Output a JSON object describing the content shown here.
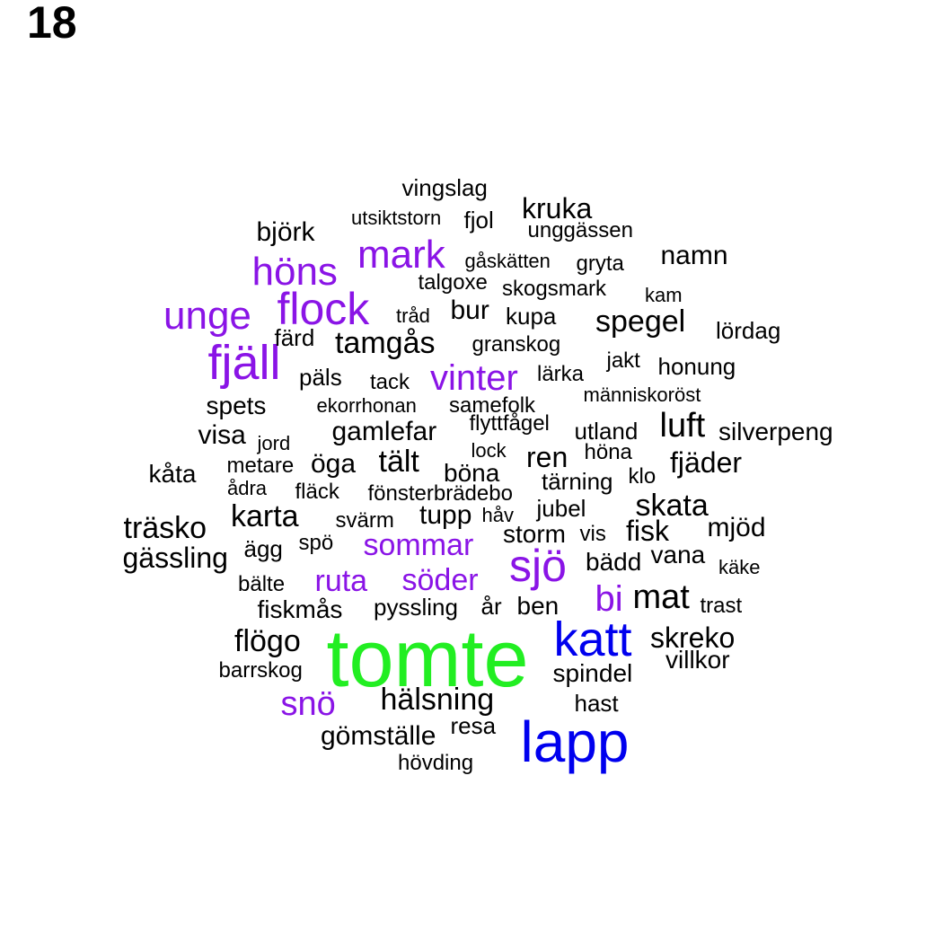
{
  "panel_label": "18",
  "colors": {
    "green": "#22ee22",
    "blue": "#0000ee",
    "purple": "#8a14e6",
    "black": "#000000"
  },
  "words": [
    {
      "text": "tomte",
      "color": "green"
    },
    {
      "text": "lapp",
      "color": "blue"
    },
    {
      "text": "katt",
      "color": "blue"
    },
    {
      "text": "sjö",
      "color": "purple"
    },
    {
      "text": "fjäll",
      "color": "purple"
    },
    {
      "text": "flock",
      "color": "purple"
    },
    {
      "text": "unge",
      "color": "purple"
    },
    {
      "text": "höns",
      "color": "purple"
    },
    {
      "text": "mark",
      "color": "purple"
    },
    {
      "text": "vinter",
      "color": "purple"
    },
    {
      "text": "sommar",
      "color": "purple"
    },
    {
      "text": "söder",
      "color": "purple"
    },
    {
      "text": "ruta",
      "color": "purple"
    },
    {
      "text": "bi",
      "color": "purple"
    },
    {
      "text": "snö",
      "color": "purple"
    },
    {
      "text": "vingslag",
      "color": "black"
    },
    {
      "text": "kruka",
      "color": "black"
    },
    {
      "text": "utsiktstorn",
      "color": "black"
    },
    {
      "text": "fjol",
      "color": "black"
    },
    {
      "text": "unggässen",
      "color": "black"
    },
    {
      "text": "björk",
      "color": "black"
    },
    {
      "text": "namn",
      "color": "black"
    },
    {
      "text": "gåskätten",
      "color": "black"
    },
    {
      "text": "gryta",
      "color": "black"
    },
    {
      "text": "talgoxe",
      "color": "black"
    },
    {
      "text": "skogsmark",
      "color": "black"
    },
    {
      "text": "kam",
      "color": "black"
    },
    {
      "text": "bur",
      "color": "black"
    },
    {
      "text": "tråd",
      "color": "black"
    },
    {
      "text": "kupa",
      "color": "black"
    },
    {
      "text": "spegel",
      "color": "black"
    },
    {
      "text": "lördag",
      "color": "black"
    },
    {
      "text": "färd",
      "color": "black"
    },
    {
      "text": "tamgås",
      "color": "black"
    },
    {
      "text": "granskog",
      "color": "black"
    },
    {
      "text": "jakt",
      "color": "black"
    },
    {
      "text": "honung",
      "color": "black"
    },
    {
      "text": "päls",
      "color": "black"
    },
    {
      "text": "tack",
      "color": "black"
    },
    {
      "text": "lärka",
      "color": "black"
    },
    {
      "text": "människoröst",
      "color": "black"
    },
    {
      "text": "spets",
      "color": "black"
    },
    {
      "text": "ekorrhonan",
      "color": "black"
    },
    {
      "text": "samefolk",
      "color": "black"
    },
    {
      "text": "flyttfågel",
      "color": "black"
    },
    {
      "text": "luft",
      "color": "black"
    },
    {
      "text": "visa",
      "color": "black"
    },
    {
      "text": "jord",
      "color": "black"
    },
    {
      "text": "gamlefar",
      "color": "black"
    },
    {
      "text": "utland",
      "color": "black"
    },
    {
      "text": "silverpeng",
      "color": "black"
    },
    {
      "text": "lock",
      "color": "black"
    },
    {
      "text": "ren",
      "color": "black"
    },
    {
      "text": "höna",
      "color": "black"
    },
    {
      "text": "kåta",
      "color": "black"
    },
    {
      "text": "metare",
      "color": "black"
    },
    {
      "text": "öga",
      "color": "black"
    },
    {
      "text": "tält",
      "color": "black"
    },
    {
      "text": "böna",
      "color": "black"
    },
    {
      "text": "fjäder",
      "color": "black"
    },
    {
      "text": "ådra",
      "color": "black"
    },
    {
      "text": "tärning",
      "color": "black"
    },
    {
      "text": "klo",
      "color": "black"
    },
    {
      "text": "fläck",
      "color": "black"
    },
    {
      "text": "fönsterbrädebo",
      "color": "black"
    },
    {
      "text": "jubel",
      "color": "black"
    },
    {
      "text": "skata",
      "color": "black"
    },
    {
      "text": "karta",
      "color": "black"
    },
    {
      "text": "tupp",
      "color": "black"
    },
    {
      "text": "håv",
      "color": "black"
    },
    {
      "text": "träsko",
      "color": "black"
    },
    {
      "text": "svärm",
      "color": "black"
    },
    {
      "text": "mjöd",
      "color": "black"
    },
    {
      "text": "fisk",
      "color": "black"
    },
    {
      "text": "storm",
      "color": "black"
    },
    {
      "text": "vis",
      "color": "black"
    },
    {
      "text": "gässling",
      "color": "black"
    },
    {
      "text": "ägg",
      "color": "black"
    },
    {
      "text": "spö",
      "color": "black"
    },
    {
      "text": "vana",
      "color": "black"
    },
    {
      "text": "bädd",
      "color": "black"
    },
    {
      "text": "käke",
      "color": "black"
    },
    {
      "text": "bälte",
      "color": "black"
    },
    {
      "text": "mat",
      "color": "black"
    },
    {
      "text": "fiskmås",
      "color": "black"
    },
    {
      "text": "pyssling",
      "color": "black"
    },
    {
      "text": "år",
      "color": "black"
    },
    {
      "text": "ben",
      "color": "black"
    },
    {
      "text": "trast",
      "color": "black"
    },
    {
      "text": "flögo",
      "color": "black"
    },
    {
      "text": "skreko",
      "color": "black"
    },
    {
      "text": "villkor",
      "color": "black"
    },
    {
      "text": "barrskog",
      "color": "black"
    },
    {
      "text": "spindel",
      "color": "black"
    },
    {
      "text": "hälsning",
      "color": "black"
    },
    {
      "text": "hast",
      "color": "black"
    },
    {
      "text": "resa",
      "color": "black"
    },
    {
      "text": "gömställe",
      "color": "black"
    },
    {
      "text": "hövding",
      "color": "black"
    }
  ]
}
